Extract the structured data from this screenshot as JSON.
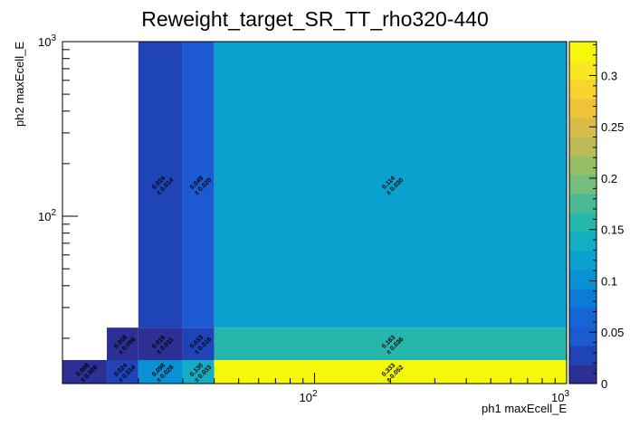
{
  "chart_data": {
    "type": "heatmap",
    "title": "Reweight_target_SR_TT_rho320-440",
    "xlabel": "ph1 maxEcell_E",
    "ylabel": "ph2 maxEcell_E",
    "x_scale": "log",
    "y_scale": "log",
    "xlim": [
      10,
      1000
    ],
    "ylim": [
      11,
      1000
    ],
    "x_edges": [
      10,
      15,
      20,
      30,
      40,
      1000
    ],
    "y_edges": [
      11,
      15,
      23,
      1000
    ],
    "x_tick_labels": [
      {
        "value": 100,
        "base": "10",
        "exp": "2"
      },
      {
        "value": 1000,
        "base": "10",
        "exp": "3"
      }
    ],
    "y_tick_labels": [
      {
        "value": 100,
        "base": "10",
        "exp": "2"
      },
      {
        "value": 1000,
        "base": "10",
        "exp": "3"
      }
    ],
    "color_scale": {
      "min": 0,
      "max": 0.333,
      "ticks": [
        "0",
        "0.05",
        "0.1",
        "0.15",
        "0.2",
        "0.25",
        "0.3"
      ],
      "tick_values": [
        0,
        0.05,
        0.1,
        0.15,
        0.2,
        0.25,
        0.3
      ]
    },
    "cells": [
      {
        "ix": 0,
        "iy": 0,
        "value": 0.008,
        "error": 0.008,
        "label": "0.008",
        "err_label": "± 0.008"
      },
      {
        "ix": 1,
        "iy": 0,
        "value": 0.024,
        "error": 0.014,
        "label": "0.024",
        "err_label": "± 0.014"
      },
      {
        "ix": 2,
        "iy": 0,
        "value": 0.098,
        "error": 0.028,
        "label": "0.098",
        "err_label": "± 0.028"
      },
      {
        "ix": 3,
        "iy": 0,
        "value": 0.13,
        "error": 0.033,
        "label": "0.130",
        "err_label": "± 0.033"
      },
      {
        "ix": 4,
        "iy": 0,
        "value": 0.333,
        "error": 0.052,
        "label": "0.333",
        "err_label": "± 0.052"
      },
      {
        "ix": 1,
        "iy": 1,
        "value": 0.008,
        "error": 0.008,
        "label": "0.008",
        "err_label": "± 0.008"
      },
      {
        "ix": 2,
        "iy": 1,
        "value": 0.016,
        "error": 0.011,
        "label": "0.016",
        "err_label": "± 0.011"
      },
      {
        "ix": 3,
        "iy": 1,
        "value": 0.033,
        "error": 0.016,
        "label": "0.033",
        "err_label": "± 0.016"
      },
      {
        "ix": 4,
        "iy": 1,
        "value": 0.163,
        "error": 0.036,
        "label": "0.163",
        "err_label": "± 0.036"
      },
      {
        "ix": 2,
        "iy": 2,
        "value": 0.024,
        "error": 0.014,
        "label": "0.024",
        "err_label": "± 0.014"
      },
      {
        "ix": 3,
        "iy": 2,
        "value": 0.049,
        "error": 0.02,
        "label": "0.049",
        "err_label": "± 0.020"
      },
      {
        "ix": 4,
        "iy": 2,
        "value": 0.114,
        "error": 0.03,
        "label": "0.114",
        "err_label": "± 0.030"
      }
    ],
    "palette": [
      "#2c2f94",
      "#1f44b8",
      "#1b5ad0",
      "#1466d6",
      "#0c7ad6",
      "#0891d3",
      "#0aa1cf",
      "#13aec4",
      "#27b6ac",
      "#4aba94",
      "#73bd7d",
      "#98bd67",
      "#bbbc55",
      "#d9bc47",
      "#efc23a",
      "#f8d42e",
      "#f8e81f",
      "#f5f80d"
    ],
    "grid": false,
    "legend": "colorbar-right"
  }
}
